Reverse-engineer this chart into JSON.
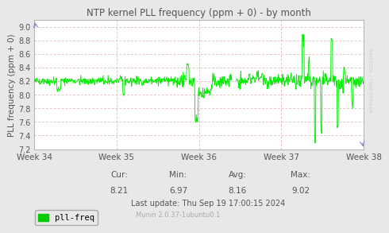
{
  "title": "NTP kernel PLL frequency (ppm + 0) - by month",
  "ylabel": "PLL frequency (ppm + 0)",
  "ylim": [
    7.2,
    9.1
  ],
  "yticks": [
    7.2,
    7.4,
    7.6,
    7.8,
    8.0,
    8.2,
    8.4,
    8.6,
    8.8,
    9.0
  ],
  "weeks": [
    "Week 34",
    "Week 35",
    "Week 36",
    "Week 37",
    "Week 38"
  ],
  "legend_label": "pll-freq",
  "legend_color": "#00cc00",
  "cur_label": "Cur:",
  "cur": "8.21",
  "min_label": "Min:",
  "min": "6.97",
  "avg_label": "Avg:",
  "avg": "8.16",
  "max_label": "Max:",
  "max": "9.02",
  "last_update": "Last update: Thu Sep 19 17:00:15 2024",
  "munin_version": "Munin 2.0.37-1ubuntu0.1",
  "rrdtool_label": "RRDTOOL / TOBI OETIKER",
  "line_color": "#00ee00",
  "bg_color": "#e8e8e8",
  "plot_bg_color": "#ffffff",
  "grid_color": "#ddaaaa",
  "title_color": "#555555",
  "label_color": "#555555",
  "axis_color": "#aaaaaa",
  "munin_color": "#aaaaaa"
}
